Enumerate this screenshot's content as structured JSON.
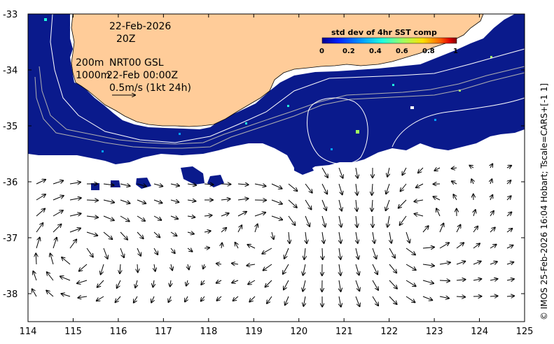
{
  "map": {
    "date": "22-Feb-2026",
    "time": "20Z",
    "contour_200": "200m",
    "contour_1000": "1000m",
    "product": "NRT00 GSL",
    "product_time": "22-Feb 00:00Z",
    "vector_scale": "0.5m/s (1kt 24h)"
  },
  "colorbar": {
    "title": "std dev of 4hr SST comp",
    "ticks": [
      "0",
      "0.2",
      "0.4",
      "0.6",
      "0.8",
      "1"
    ],
    "colors": [
      "#00008f",
      "#0020ff",
      "#00a0ff",
      "#20ffdf",
      "#9fff60",
      "#ffdf00",
      "#ff6000",
      "#df0000",
      "#800000"
    ]
  },
  "axes": {
    "x_ticks": [
      "114",
      "115",
      "116",
      "117",
      "118",
      "119",
      "120",
      "121",
      "122",
      "123",
      "124",
      "125"
    ],
    "y_ticks": [
      "-33",
      "-34",
      "-35",
      "-36",
      "-37",
      "-38"
    ],
    "lon_range": [
      114,
      125
    ],
    "lat_range": [
      -38.5,
      -33
    ]
  },
  "credit": "© IMOS 25-Feb-2026 16:04 Hobart; Tscale=CARS+[-1 1]",
  "colors": {
    "land": "#ffcc99",
    "sst": "#0a1a8c",
    "frame": "#000000"
  }
}
